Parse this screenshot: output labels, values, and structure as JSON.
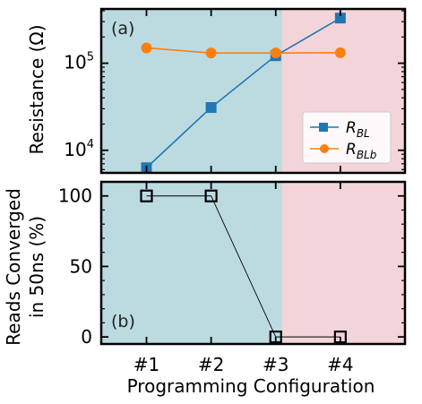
{
  "chart_data": [
    {
      "panel": "(a)",
      "type": "line",
      "ylabel": "Resistance (Ω)",
      "yscale": "log",
      "ylim": [
        5500,
        420000
      ],
      "yticks": [
        {
          "value": 10000,
          "base": "10",
          "exp": "4"
        },
        {
          "value": 100000,
          "base": "10",
          "exp": "5"
        }
      ],
      "categories": [
        "#1",
        "#2",
        "#3",
        "#4"
      ],
      "xlim": [
        0.3,
        5.0
      ],
      "background_split_x": 3.1,
      "background_colors": [
        "#bcdbe1",
        "#f3d5d9"
      ],
      "series": [
        {
          "name": "R",
          "sub": "BL",
          "color": "#1f77b4",
          "marker": "square",
          "values": [
            6300,
            31000,
            122000,
            330000
          ]
        },
        {
          "name": "R",
          "sub": "BLb",
          "color": "#ff7f0e",
          "marker": "circle",
          "values": [
            150000,
            131000,
            131000,
            132000
          ]
        }
      ],
      "legend": "bottom-right"
    },
    {
      "panel": "(b)",
      "type": "line",
      "ylabel_lines": [
        "Reads Converged",
        "in 50ns (%)"
      ],
      "ylim": [
        -5,
        110
      ],
      "yticks": [
        0,
        50,
        100
      ],
      "categories": [
        "#1",
        "#2",
        "#3",
        "#4"
      ],
      "xlim": [
        0.3,
        5.0
      ],
      "xlabel": "Programming Configuration",
      "background_split_x": 3.1,
      "background_colors": [
        "#bcdbe1",
        "#f3d5d9"
      ],
      "series": [
        {
          "color": "#000000",
          "marker": "open-square",
          "values": [
            100,
            100,
            0,
            0
          ]
        }
      ]
    }
  ]
}
